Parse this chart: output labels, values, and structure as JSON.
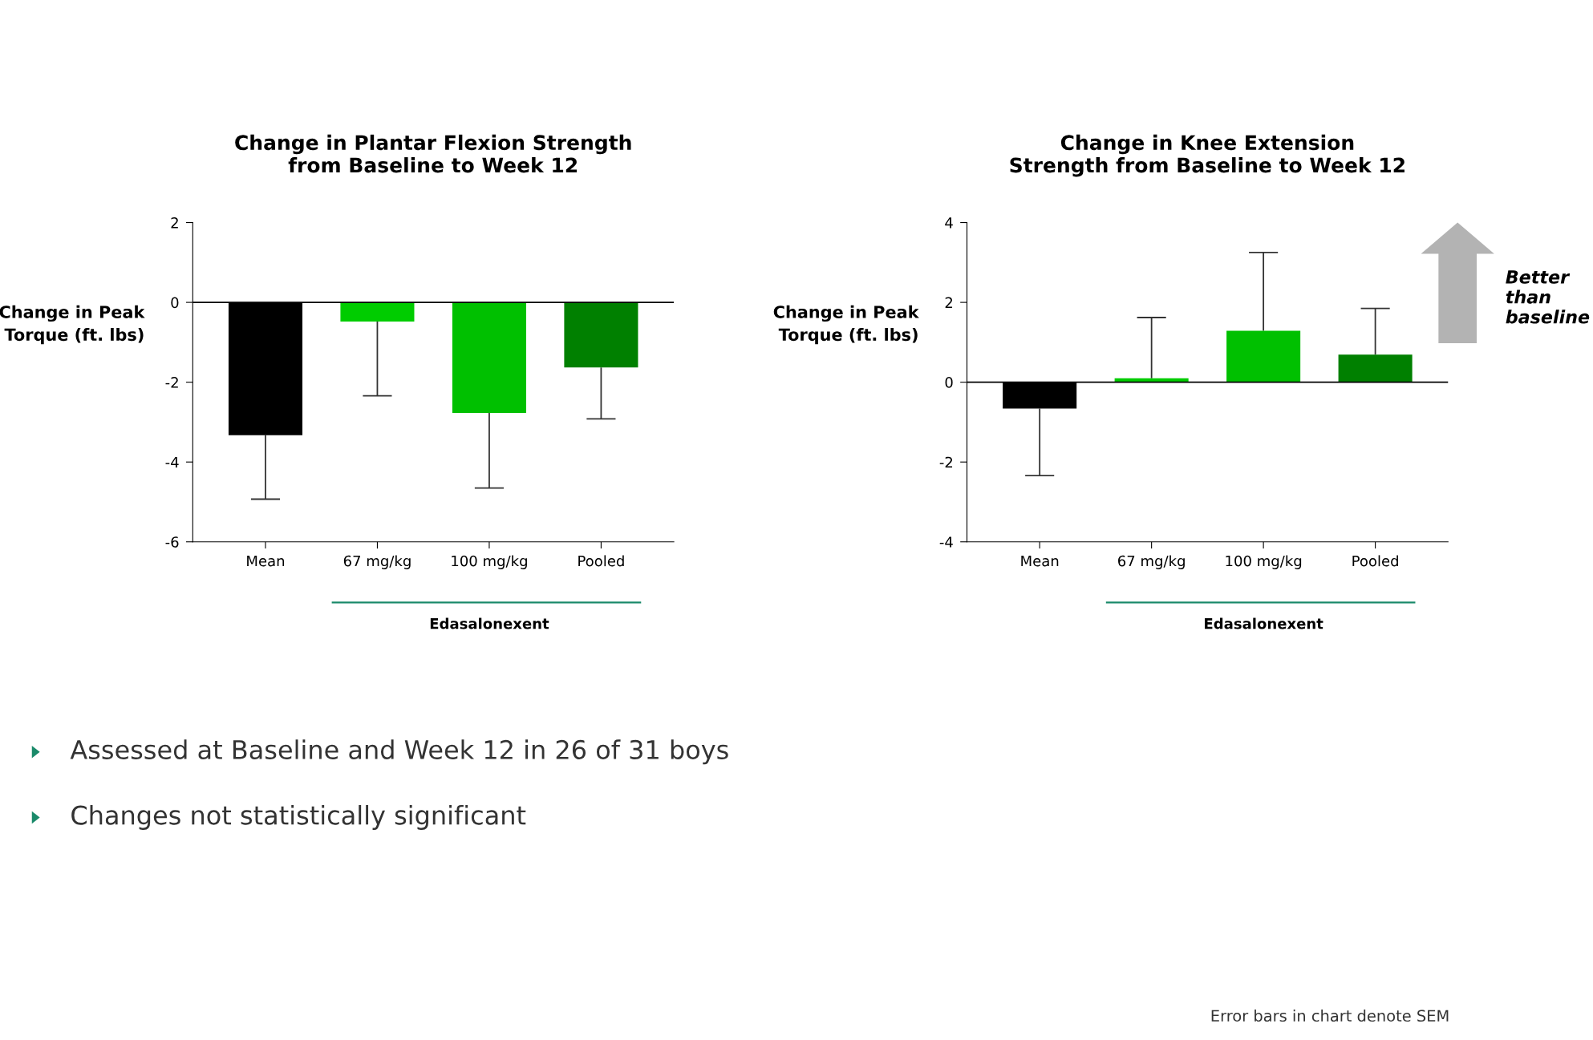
{
  "chart_data": [
    {
      "type": "bar",
      "title": "Change in Plantar Flexion Strength\nfrom Baseline to Week 12",
      "ylabel": "Change in Peak\nTorque (ft. lbs)",
      "categories": [
        "Mean",
        "67 mg/kg",
        "100 mg/kg",
        "Pooled"
      ],
      "values": [
        -3.33,
        -0.48,
        -2.77,
        -1.63
      ],
      "errors": [
        [
          -4.93,
          -3.33
        ],
        [
          -2.34,
          -0.48
        ],
        [
          -4.65,
          -2.77
        ],
        [
          -2.92,
          -1.63
        ]
      ],
      "colors": [
        "#000000",
        "#00cc00",
        "#00c000",
        "#008000"
      ],
      "ylim": [
        -6,
        2
      ],
      "yticks": [
        -6,
        -4,
        -2,
        0,
        2
      ],
      "grid": false,
      "ref_lines": [
        {
          "axis": "y",
          "value": 0,
          "color": "#000000"
        }
      ],
      "annotations": [
        "Edasalonexent",
        "Assessed at Baseline and Week 12 in 26 of 31 boys",
        "Changes not statistically significant"
      ]
    },
    {
      "type": "bar",
      "title": "Change in Knee Extension\nStrength from Baseline to Week 12",
      "ylabel": "Change in Peak\nTorque (ft. lbs)",
      "categories": [
        "Mean",
        "67 mg/kg",
        "100 mg/kg",
        "Pooled"
      ],
      "values": [
        -0.66,
        0.1,
        1.29,
        0.69
      ],
      "errors": [
        [
          -2.34,
          -0.66
        ],
        [
          0.1,
          1.62
        ],
        [
          1.29,
          3.25
        ],
        [
          0.69,
          1.85
        ]
      ],
      "colors": [
        "#000000",
        "#00cc00",
        "#00c000",
        "#008000"
      ],
      "ylim": [
        -4,
        4
      ],
      "yticks": [
        -4,
        -2,
        0,
        2,
        4
      ],
      "grid": false,
      "ref_lines": [
        {
          "axis": "y",
          "value": 0,
          "color": "#000000"
        }
      ],
      "annotations": [
        "Edasalonexent",
        "Better than baseline",
        "Error bars in chart denote SEM"
      ]
    }
  ]
}
